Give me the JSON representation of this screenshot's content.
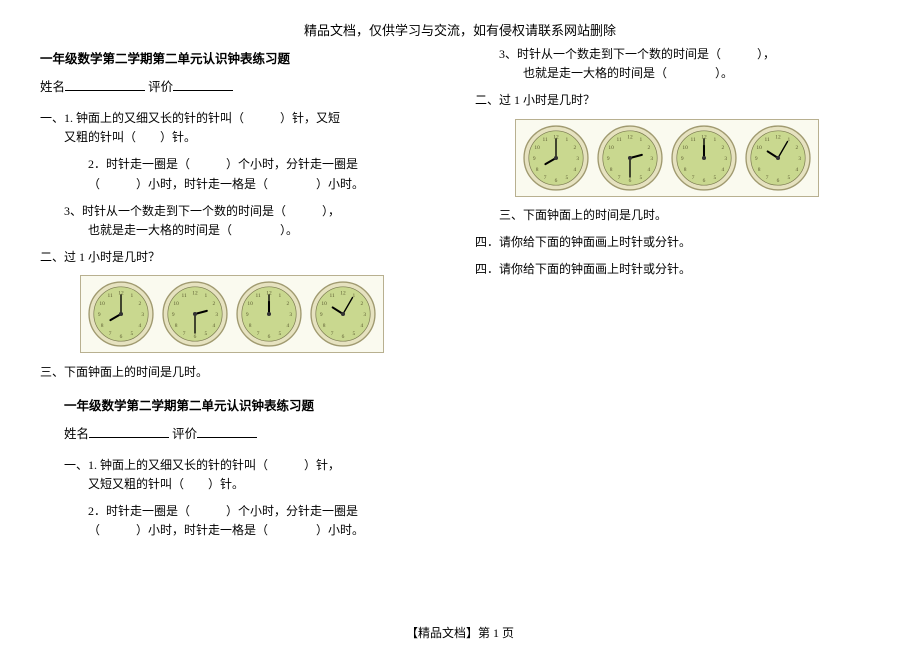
{
  "header": "精品文档，仅供学习与交流，如有侵权请联系网站删除",
  "worksheet_title": "一年级数学第二学期第二单元认识钟表练习题",
  "name_label": "姓名",
  "rating_label": "评价",
  "q1_prefix": "一、1. 钟面上的又细又长的针的针叫（　　　）针，又短",
  "q1_line2": "又粗的针叫（　　）针。",
  "q1_alt_prefix": "一、1. 钟面上的又细又长的针的针叫（　　　）针，",
  "q1_alt_line2": "又短又粗的针叫（　　）针。",
  "q2_line1": "2．时针走一圈是（　　　）个小时，分针走一圈是",
  "q2_line2": "（　　　）小时，时针走一格是（　　　　）小时。",
  "q3_line1": "3、时针从一个数走到下一个数的时间是（　　　），",
  "q3_line2": "也就是走一大格的时间是（　　　　）。",
  "q_sec2": "二、过 1 小时是几时？",
  "q_sec3": "三、下面钟面上的时间是几时。",
  "q_sec4": "四．请你给下面的钟面画上时针或分针。",
  "footer": "【精品文档】第 1 页",
  "clock_style": {
    "face_fill": "#c9d88f",
    "face_stroke": "#7a7a50",
    "rim_fill": "#e6e2c0",
    "rim_stroke": "#a09a70",
    "center_fill": "#333333",
    "hand_color": "#000000",
    "box_border": "#b8b090",
    "box_bg": "#fafaef"
  },
  "clocks_row1": [
    {
      "hour": 8,
      "minute": 0
    },
    {
      "hour": 2,
      "minute": 30
    },
    {
      "hour": 12,
      "minute": 0
    },
    {
      "hour": 10,
      "minute": 5
    }
  ],
  "clocks_row2": [
    {
      "hour": 8,
      "minute": 0
    },
    {
      "hour": 2,
      "minute": 30
    },
    {
      "hour": 12,
      "minute": 0
    },
    {
      "hour": 10,
      "minute": 5
    }
  ]
}
